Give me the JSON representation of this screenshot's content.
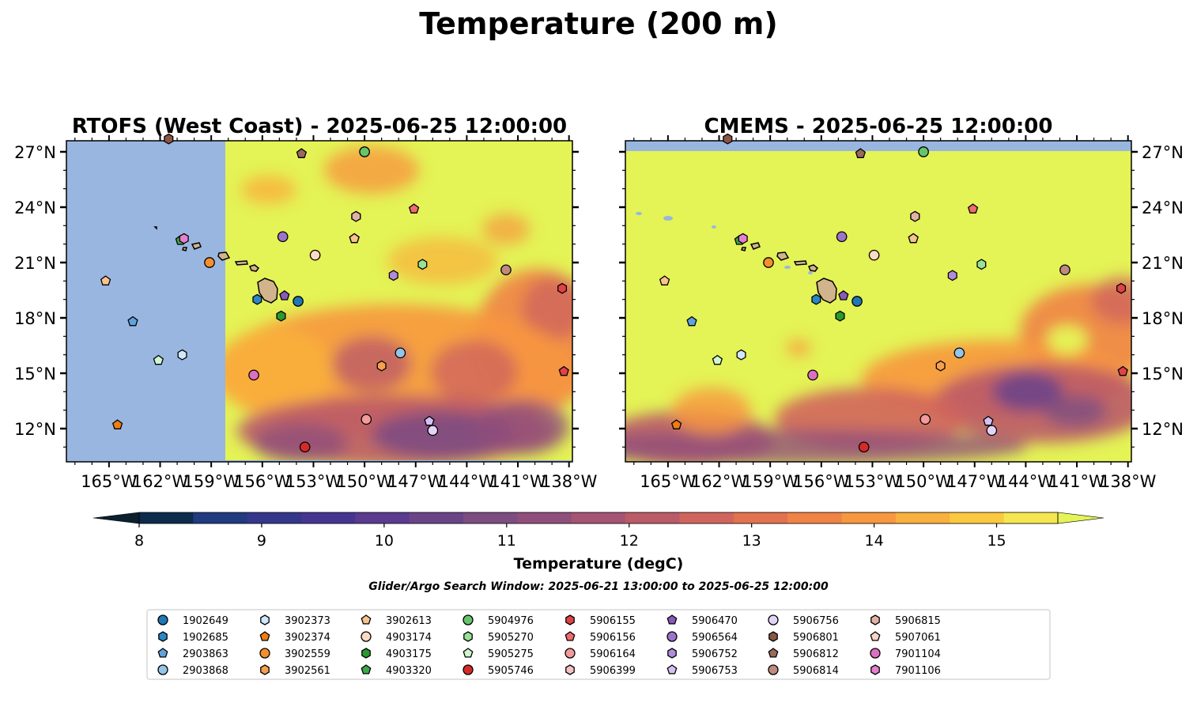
{
  "figure": {
    "title": "Temperature (200 m)"
  },
  "map": {
    "extent": {
      "lon": [
        -167.5,
        -137.8
      ],
      "lat": [
        10.2,
        27.6
      ]
    },
    "lon_ticks": [
      {
        "lon": -165,
        "label": "165°W"
      },
      {
        "lon": -162,
        "label": "162°W"
      },
      {
        "lon": -159,
        "label": "159°W"
      },
      {
        "lon": -156,
        "label": "156°W"
      },
      {
        "lon": -153,
        "label": "153°W"
      },
      {
        "lon": -150,
        "label": "150°W"
      },
      {
        "lon": -147,
        "label": "147°W"
      },
      {
        "lon": -144,
        "label": "144°W"
      },
      {
        "lon": -141,
        "label": "141°W"
      },
      {
        "lon": -138,
        "label": "138°W"
      }
    ],
    "lat_ticks": [
      {
        "lat": 27,
        "label": "27°N"
      },
      {
        "lat": 24,
        "label": "24°N"
      },
      {
        "lat": 21,
        "label": "21°N"
      },
      {
        "lat": 18,
        "label": "18°N"
      },
      {
        "lat": 15,
        "label": "15°N"
      },
      {
        "lat": 12,
        "label": "12°N"
      }
    ],
    "land_color": "#d2b48c",
    "nodata_color": "#98b6e0",
    "panels": [
      {
        "id": "rtofs",
        "title": "RTOFS (West Coast) - 2025-06-25 12:00:00",
        "nodata_west_of_lon": -158.6,
        "lat_labels_side": "left"
      },
      {
        "id": "cmems",
        "title": "CMEMS - 2025-06-25 12:00:00",
        "nodata_north_of_lat": 27.0,
        "lat_labels_side": "right"
      }
    ]
  },
  "colorbar": {
    "label": "Temperature (degC)",
    "min": 7.7,
    "max": 15.5,
    "step": 0.5,
    "extend": "both",
    "ticks": [
      {
        "value": 8,
        "label": "8"
      },
      {
        "value": 9,
        "label": "9"
      },
      {
        "value": 10,
        "label": "10"
      },
      {
        "value": 11,
        "label": "11"
      },
      {
        "value": 12,
        "label": "12"
      },
      {
        "value": 13,
        "label": "13"
      },
      {
        "value": 14,
        "label": "14"
      },
      {
        "value": 15,
        "label": "15"
      }
    ],
    "colors": [
      "#0b1f2e",
      "#0d2b4d",
      "#213b80",
      "#35378c",
      "#473592",
      "#5a3b8f",
      "#6b4488",
      "#7d4d81",
      "#904f7b",
      "#a55473",
      "#bb5b68",
      "#d0655d",
      "#e2724f",
      "#f08346",
      "#f7973f",
      "#fab03c",
      "#fbc93f",
      "#f5e64f",
      "#e4f356"
    ]
  },
  "search_window": "Glider/Argo Search Window: 2025-06-21 13:00:00 to 2025-06-25 12:00:00",
  "floats": [
    {
      "id": "1902649",
      "marker": "circle",
      "color": "#1f77b4",
      "lon": -153.9,
      "lat": 18.9
    },
    {
      "id": "1902685",
      "marker": "hexagon",
      "color": "#2b86c6",
      "lon": -156.3,
      "lat": 19.0
    },
    {
      "id": "2903863",
      "marker": "pentagon",
      "color": "#5fa3dd",
      "lon": -163.6,
      "lat": 17.8
    },
    {
      "id": "2903868",
      "marker": "circle",
      "color": "#92c5e8",
      "lon": -147.9,
      "lat": 16.1
    },
    {
      "id": "3902373",
      "marker": "hexagon",
      "color": "#d0e8fb",
      "lon": -160.7,
      "lat": 16.0
    },
    {
      "id": "3902374",
      "marker": "pentagon",
      "color": "#f07d12",
      "lon": -164.5,
      "lat": 12.2
    },
    {
      "id": "3902559",
      "marker": "circle",
      "color": "#f38f2e",
      "lon": -159.1,
      "lat": 21.0
    },
    {
      "id": "3902561",
      "marker": "hexagon",
      "color": "#f5a04f",
      "lon": -149.0,
      "lat": 15.4
    },
    {
      "id": "3902613",
      "marker": "pentagon",
      "color": "#f8c38c",
      "lon": -165.2,
      "lat": 20.0
    },
    {
      "id": "4903174",
      "marker": "circle",
      "color": "#fbdcc2",
      "lon": -152.9,
      "lat": 21.4
    },
    {
      "id": "4903175",
      "marker": "hexagon",
      "color": "#2a9a2f",
      "lon": -154.9,
      "lat": 18.1
    },
    {
      "id": "4903320",
      "marker": "pentagon",
      "color": "#3ea84b",
      "lon": -160.8,
      "lat": 22.2
    },
    {
      "id": "5904976",
      "marker": "circle",
      "color": "#67c46b",
      "lon": -150.0,
      "lat": 27.0
    },
    {
      "id": "5905270",
      "marker": "hexagon",
      "color": "#98e195",
      "lon": -146.6,
      "lat": 20.9
    },
    {
      "id": "5905275",
      "marker": "pentagon",
      "color": "#cff7cf",
      "lon": -162.1,
      "lat": 15.7
    },
    {
      "id": "5905746",
      "marker": "circle",
      "color": "#d62a28",
      "lon": -153.5,
      "lat": 11.0
    },
    {
      "id": "5906155",
      "marker": "hexagon",
      "color": "#e04345",
      "lon": -138.4,
      "lat": 19.6
    },
    {
      "id": "5906156",
      "marker": "pentagon",
      "color": "#ef6b6d",
      "lon": -147.1,
      "lat": 23.9
    },
    {
      "id": "5906164",
      "marker": "circle",
      "color": "#f39a9c",
      "lon": -149.9,
      "lat": 12.5
    },
    {
      "id": "5906399",
      "marker": "hexagon",
      "color": "#f6c0c1",
      "lon": -150.5,
      "lat": 23.5
    },
    {
      "id": "5906470",
      "marker": "pentagon",
      "color": "#8a5ab8",
      "lon": -154.7,
      "lat": 19.2
    },
    {
      "id": "5906564",
      "marker": "circle",
      "color": "#9d74c8",
      "lon": -154.8,
      "lat": 22.4
    },
    {
      "id": "5906752",
      "marker": "hexagon",
      "color": "#b08cd9",
      "lon": -148.3,
      "lat": 20.3
    },
    {
      "id": "5906753",
      "marker": "pentagon",
      "color": "#d5c0f2",
      "lon": -146.2,
      "lat": 12.4
    },
    {
      "id": "5906756",
      "marker": "circle",
      "color": "#e3d4f7",
      "lon": -146.0,
      "lat": 11.9
    },
    {
      "id": "5906801",
      "marker": "hexagon",
      "color": "#8a5542",
      "lon": -161.5,
      "lat": 27.7
    },
    {
      "id": "5906812",
      "marker": "pentagon",
      "color": "#9a6a5a",
      "lon": -153.7,
      "lat": 26.9
    },
    {
      "id": "5906814",
      "marker": "circle",
      "color": "#c08a7f",
      "lon": -141.7,
      "lat": 20.6
    },
    {
      "id": "5906815",
      "marker": "hexagon",
      "color": "#e2b1a6",
      "lon": -150.5,
      "lat": 23.5
    },
    {
      "id": "5907061",
      "marker": "pentagon",
      "color": "#f9d4c9",
      "lon": -150.6,
      "lat": 22.3
    },
    {
      "id": "7901104",
      "marker": "circle",
      "color": "#dd6fc2",
      "lon": -156.5,
      "lat": 14.9
    },
    {
      "id": "7901106",
      "marker": "hexagon",
      "color": "#e67fcf",
      "lon": -160.6,
      "lat": 22.3
    },
    {
      "id": "extra-a",
      "marker": "pentagon",
      "color": "#e04345",
      "lon": -138.3,
      "lat": 15.1
    },
    {
      "id": "extra-b",
      "marker": "pentagon",
      "color": "#f8c38c",
      "lon": -150.6,
      "lat": 22.3
    }
  ],
  "legend_order": [
    "1902649",
    "1902685",
    "2903863",
    "2903868",
    "3902373",
    "3902374",
    "3902559",
    "3902561",
    "3902613",
    "4903174",
    "4903175",
    "4903320",
    "5904976",
    "5905270",
    "5905275",
    "5905746",
    "5906155",
    "5906156",
    "5906164",
    "5906399",
    "5906470",
    "5906564",
    "5906752",
    "5906753",
    "5906756",
    "5906801",
    "5906812",
    "5906814",
    "5906815",
    "5907061",
    "7901104",
    "7901106"
  ]
}
